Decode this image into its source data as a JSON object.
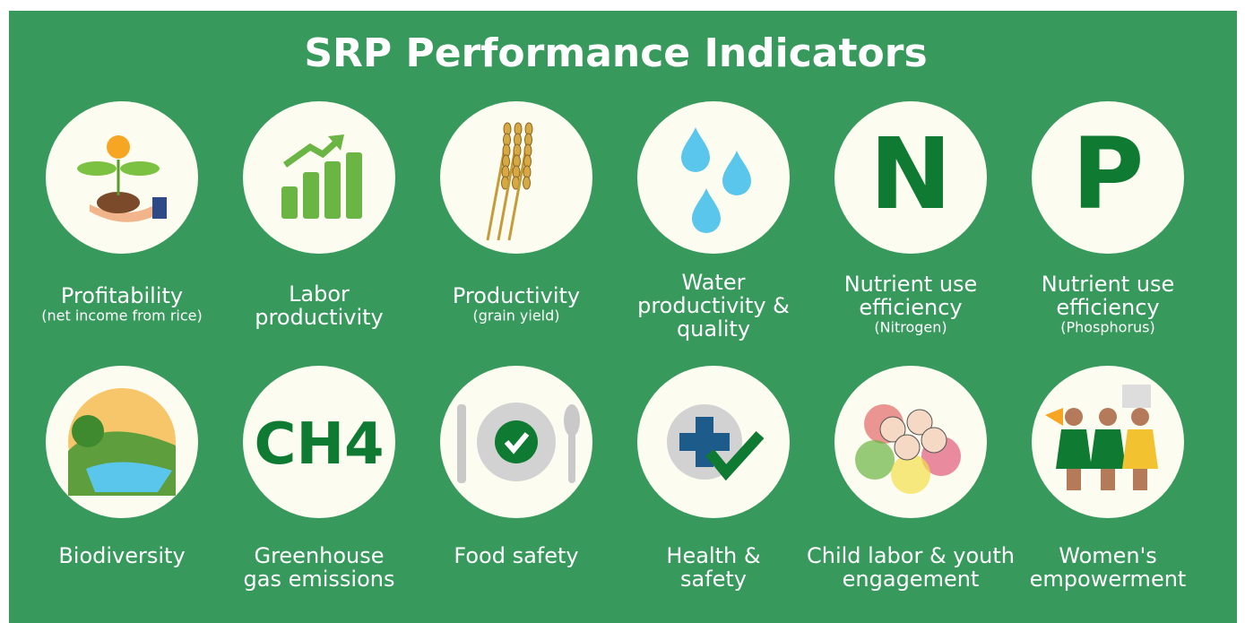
{
  "title": "SRP Performance Indicators",
  "indicators": [
    {
      "lines": [
        "Profitability"
      ],
      "sub": "(net income from rice)"
    },
    {
      "lines": [
        "Labor",
        "productivity"
      ]
    },
    {
      "lines": [
        "Productivity"
      ],
      "sub": "(grain yield)"
    },
    {
      "lines": [
        "Water",
        "productivity &",
        "quality"
      ]
    },
    {
      "lines": [
        "Nutrient use",
        "efficiency"
      ],
      "sub": "(Nitrogen)",
      "icon_text": "N"
    },
    {
      "lines": [
        "Nutrient use",
        "efficiency"
      ],
      "sub": "(Phosphorus)",
      "icon_text": "P"
    },
    {
      "lines": [
        "Biodiversity"
      ]
    },
    {
      "lines": [
        "Greenhouse",
        "gas emissions"
      ],
      "icon_text": "CH4"
    },
    {
      "lines": [
        "Food safety"
      ]
    },
    {
      "lines": [
        "Health &",
        "safety"
      ]
    },
    {
      "lines": [
        "Child labor & youth",
        "engagement"
      ]
    },
    {
      "lines": [
        "Women's",
        "empowerment"
      ]
    }
  ]
}
